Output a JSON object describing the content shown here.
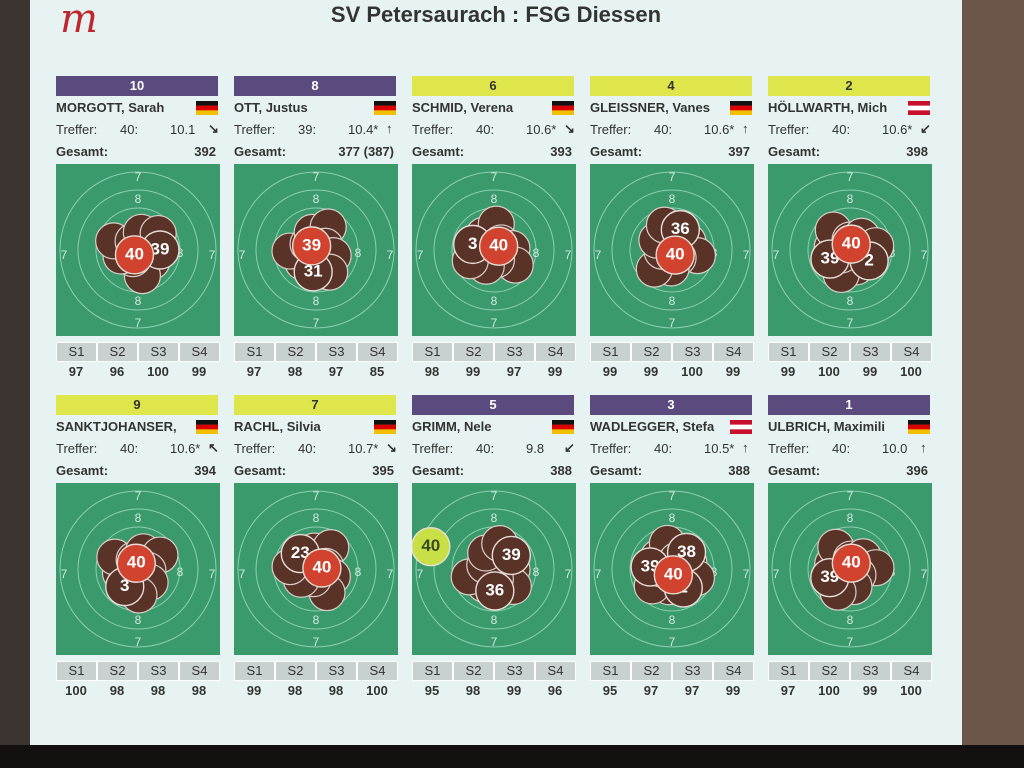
{
  "header": {
    "logo": "m",
    "title": "SV Petersaurach : FSG Diessen"
  },
  "labels": {
    "hits": "Treffer:",
    "total": "Gesamt:",
    "series": [
      "S1",
      "S2",
      "S3",
      "S4"
    ],
    "rings": [
      "7",
      "8"
    ]
  },
  "cards": [
    {
      "position": "10",
      "bar_color": "#5b4a7e",
      "name": "MORGOTT, Sarah",
      "flag": "de",
      "hits": "40:",
      "last_shot": "10.1",
      "total": "392",
      "shots": [
        "39",
        "40"
      ],
      "highlight_color": "#d2432f",
      "series": [
        97,
        96,
        100,
        99
      ]
    },
    {
      "position": "8",
      "bar_color": "#5b4a7e",
      "name": "OTT, Justus",
      "flag": "de",
      "hits": "39:",
      "last_shot": "10.4*",
      "total": "377 (387)",
      "shots": [
        "31",
        "39"
      ],
      "highlight_color": "#d2432f",
      "series": [
        97,
        98,
        97,
        85
      ]
    },
    {
      "position": "6",
      "bar_color": "#dfe64c",
      "name": "SCHMID, Verena",
      "flag": "de",
      "hits": "40:",
      "last_shot": "10.6*",
      "total": "393",
      "shots": [
        "3",
        "40"
      ],
      "highlight_color": "#d2432f",
      "series": [
        98,
        99,
        97,
        99
      ]
    },
    {
      "position": "4",
      "bar_color": "#dfe64c",
      "name": "GLEISSNER, Vanes",
      "flag": "de",
      "hits": "40:",
      "last_shot": "10.6*",
      "total": "397",
      "shots": [
        "36",
        "40"
      ],
      "highlight_color": "#d2432f",
      "series": [
        99,
        99,
        100,
        99
      ]
    },
    {
      "position": "2",
      "bar_color": "#dfe64c",
      "name": "HÖLLWARTH, Mich",
      "flag": "at",
      "hits": "40:",
      "last_shot": "10.6*",
      "total": "398",
      "shots": [
        "2",
        "39",
        "40"
      ],
      "highlight_color": "#d2432f",
      "series": [
        99,
        100,
        99,
        100
      ]
    },
    {
      "position": "9",
      "bar_color": "#dfe64c",
      "name": "SANKTJOHANSER,",
      "flag": "de",
      "hits": "40:",
      "last_shot": "10.6*",
      "total": "394",
      "shots": [
        "3",
        "40"
      ],
      "highlight_color": "#d2432f",
      "series": [
        100,
        98,
        98,
        98
      ]
    },
    {
      "position": "7",
      "bar_color": "#dfe64c",
      "name": "RACHL, Silvia",
      "flag": "de",
      "hits": "40:",
      "last_shot": "10.7*",
      "total": "395",
      "shots": [
        "23",
        "40"
      ],
      "highlight_color": "#d2432f",
      "series": [
        99,
        98,
        98,
        100
      ]
    },
    {
      "position": "5",
      "bar_color": "#5b4a7e",
      "name": "GRIMM, Nele",
      "flag": "de",
      "hits": "40:",
      "last_shot": "9.8",
      "total": "388",
      "shots": [
        "39",
        "36",
        "40"
      ],
      "highlight_color": "#c8e046",
      "series": [
        95,
        98,
        99,
        96
      ]
    },
    {
      "position": "3",
      "bar_color": "#5b4a7e",
      "name": "WADLEGGER, Stefa",
      "flag": "at",
      "hits": "40:",
      "last_shot": "10.5*",
      "total": "388",
      "shots": [
        "2",
        "39",
        "38",
        "40"
      ],
      "highlight_color": "#d2432f",
      "series": [
        95,
        97,
        97,
        99
      ]
    },
    {
      "position": "1",
      "bar_color": "#5b4a7e",
      "name": "ULBRICH, Maximili",
      "flag": "de",
      "hits": "40:",
      "last_shot": "10.0",
      "total": "396",
      "shots": [
        "39",
        "40"
      ],
      "highlight_color": "#d2432f",
      "series": [
        97,
        100,
        99,
        100
      ]
    }
  ]
}
